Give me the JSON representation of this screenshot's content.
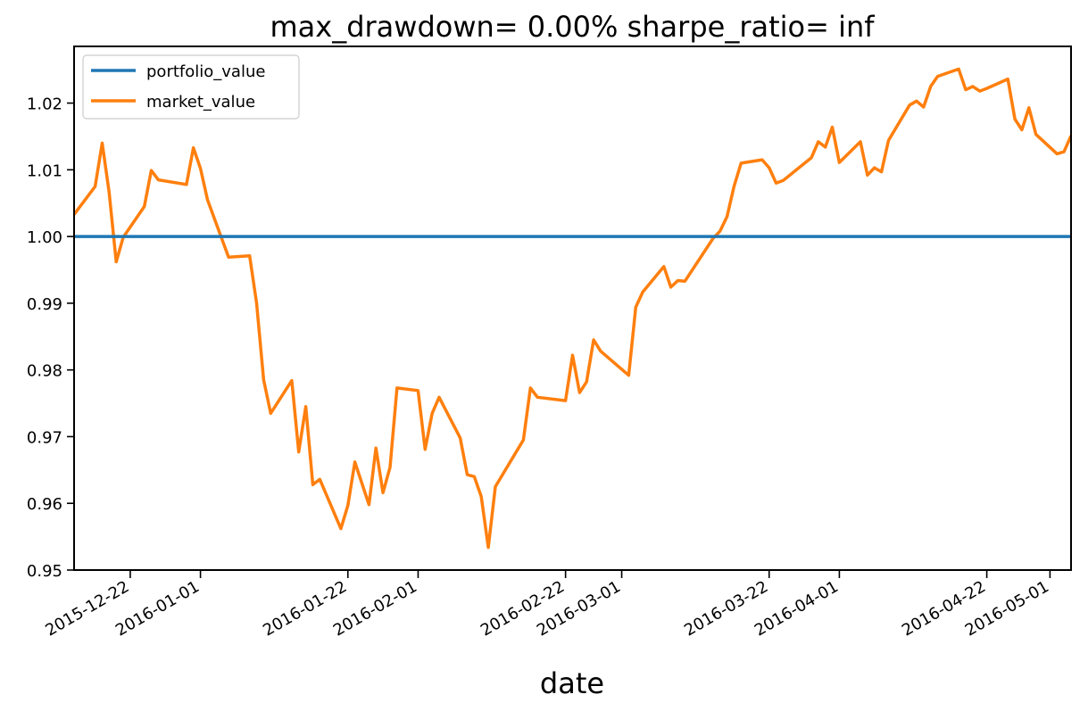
{
  "chart_data": {
    "type": "line",
    "title": "max_drawdown= 0.00% sharpe_ratio= inf",
    "xlabel": "date",
    "ylabel": "",
    "x_range": [
      "2015-12-14",
      "2016-05-04"
    ],
    "ylim": [
      0.95,
      1.0285
    ],
    "yticks": [
      0.95,
      0.96,
      0.97,
      0.98,
      0.99,
      1.0,
      1.01,
      1.02
    ],
    "ytick_labels": [
      "0.95",
      "0.96",
      "0.97",
      "0.98",
      "0.99",
      "1.00",
      "1.01",
      "1.02"
    ],
    "xticks": [
      "2015-12-22",
      "2016-01-01",
      "2016-01-22",
      "2016-02-01",
      "2016-02-22",
      "2016-03-01",
      "2016-03-22",
      "2016-04-01",
      "2016-04-22",
      "2016-05-01"
    ],
    "grid": false,
    "legend_position": "top-left",
    "colors": {
      "portfolio_value": "#1f77b4",
      "market_value": "#ff7f0e"
    },
    "series": [
      {
        "name": "portfolio_value",
        "x": [
          "2015-12-14",
          "2016-05-04"
        ],
        "values": [
          1.0,
          1.0
        ]
      },
      {
        "name": "market_value",
        "x": [
          "2015-12-14",
          "2015-12-17",
          "2015-12-18",
          "2015-12-19",
          "2015-12-20",
          "2015-12-21",
          "2015-12-24",
          "2015-12-25",
          "2015-12-26",
          "2015-12-30",
          "2015-12-31",
          "2016-01-01",
          "2016-01-02",
          "2016-01-05",
          "2016-01-08",
          "2016-01-09",
          "2016-01-10",
          "2016-01-11",
          "2016-01-14",
          "2016-01-15",
          "2016-01-16",
          "2016-01-17",
          "2016-01-18",
          "2016-01-21",
          "2016-01-22",
          "2016-01-23",
          "2016-01-25",
          "2016-01-26",
          "2016-01-27",
          "2016-01-28",
          "2016-01-29",
          "2016-02-01",
          "2016-02-02",
          "2016-02-03",
          "2016-02-04",
          "2016-02-07",
          "2016-02-08",
          "2016-02-09",
          "2016-02-10",
          "2016-02-11",
          "2016-02-12",
          "2016-02-16",
          "2016-02-17",
          "2016-02-18",
          "2016-02-22",
          "2016-02-23",
          "2016-02-24",
          "2016-02-25",
          "2016-02-26",
          "2016-02-27",
          "2016-03-02",
          "2016-03-03",
          "2016-03-04",
          "2016-03-07",
          "2016-03-08",
          "2016-03-09",
          "2016-03-10",
          "2016-03-14",
          "2016-03-15",
          "2016-03-16",
          "2016-03-17",
          "2016-03-18",
          "2016-03-21",
          "2016-03-22",
          "2016-03-23",
          "2016-03-24",
          "2016-03-28",
          "2016-03-29",
          "2016-03-30",
          "2016-03-31",
          "2016-04-01",
          "2016-04-04",
          "2016-04-05",
          "2016-04-06",
          "2016-04-07",
          "2016-04-08",
          "2016-04-11",
          "2016-04-12",
          "2016-04-13",
          "2016-04-14",
          "2016-04-15",
          "2016-04-18",
          "2016-04-19",
          "2016-04-20",
          "2016-04-21",
          "2016-04-22",
          "2016-04-25",
          "2016-04-26",
          "2016-04-27",
          "2016-04-28",
          "2016-04-29",
          "2016-05-02",
          "2016-05-03",
          "2016-05-04"
        ],
        "values": [
          1.0033,
          1.0075,
          1.014,
          1.0066,
          0.9962,
          0.9999,
          1.0045,
          1.0099,
          1.0085,
          1.0078,
          1.0133,
          1.0102,
          1.0055,
          0.9969,
          0.9971,
          0.99,
          0.9785,
          0.9735,
          0.9784,
          0.9677,
          0.9745,
          0.9628,
          0.9636,
          0.9562,
          0.9597,
          0.9662,
          0.9598,
          0.9683,
          0.9616,
          0.9654,
          0.9773,
          0.9769,
          0.9681,
          0.9735,
          0.9759,
          0.9698,
          0.9643,
          0.964,
          0.961,
          0.9534,
          0.9625,
          0.9695,
          0.9773,
          0.9759,
          0.9754,
          0.9822,
          0.9766,
          0.9782,
          0.9845,
          0.9828,
          0.9792,
          0.9894,
          0.9917,
          0.9955,
          0.9924,
          0.9934,
          0.9933,
          0.9997,
          1.0008,
          1.003,
          1.0075,
          1.011,
          1.0115,
          1.0103,
          1.008,
          1.0084,
          1.0118,
          1.0142,
          1.0134,
          1.0164,
          1.0111,
          1.0142,
          1.0092,
          1.0103,
          1.0097,
          1.0144,
          1.0197,
          1.0203,
          1.0194,
          1.0225,
          1.024,
          1.0251,
          1.022,
          1.0225,
          1.0218,
          1.0222,
          1.0236,
          1.0176,
          1.016,
          1.0193,
          1.0153,
          1.0124,
          1.0127,
          1.0151
        ]
      }
    ]
  }
}
